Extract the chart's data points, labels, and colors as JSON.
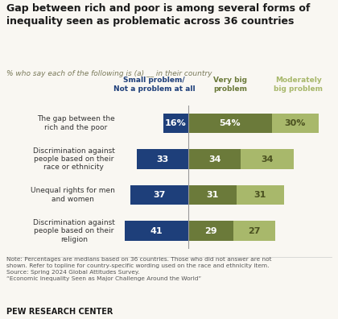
{
  "title": "Gap between rich and poor is among several forms of\ninequality seen as problematic across 36 countries",
  "subtitle": "% who say each of the following is (a) __ in their country",
  "categories": [
    "The gap between the\nrich and the poor",
    "Discrimination against\npeople based on their\nrace or ethnicity",
    "Unequal rights for men\nand women",
    "Discrimination against\npeople based on their\nreligion"
  ],
  "small_problem": [
    16,
    33,
    37,
    41
  ],
  "very_big": [
    54,
    34,
    31,
    29
  ],
  "moderately_big": [
    30,
    34,
    31,
    27
  ],
  "color_small": "#1e3f7a",
  "color_very_big": "#6b7a3a",
  "color_moderately_big": "#a8b86b",
  "legend_small": "Small problem/\nNot a problem at all",
  "legend_very_big": "Very big\nproblem",
  "legend_moderately_big": "Moderately\nbig problem",
  "note": "Note: Percentages are medians based on 36 countries. Those who did not answer are not\nshown. Refer to topline for country-specific wording used on the race and ethnicity item.\nSource: Spring 2024 Global Attitudes Survey.\n“Economic Inequality Seen as Major Challenge Around the World”",
  "footer": "PEW RESEARCH CENTER",
  "background_color": "#f9f7f2",
  "xlim_left": -45,
  "xlim_right": 90
}
